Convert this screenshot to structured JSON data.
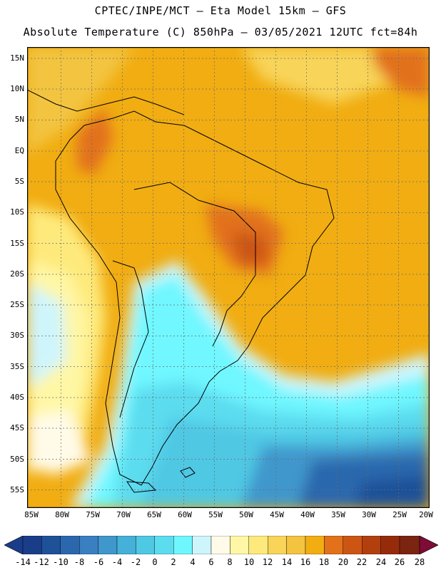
{
  "header": {
    "line1": "CPTEC/INPE/MCT –  Eta Model 15km – GFS",
    "line2": "Absolute Temperature (C) 850hPa – 03/05/2021 12UTC fct=84h"
  },
  "map": {
    "lat_labels": [
      "15N",
      "10N",
      "5N",
      "EQ",
      "5S",
      "10S",
      "15S",
      "20S",
      "25S",
      "30S",
      "35S",
      "40S",
      "45S",
      "50S",
      "55S"
    ],
    "lon_labels": [
      "85W",
      "80W",
      "75W",
      "70W",
      "65W",
      "60W",
      "55W",
      "50W",
      "45W",
      "40W",
      "35W",
      "30W",
      "25W",
      "20W"
    ]
  },
  "colorbar": {
    "labels": [
      "-14",
      "-12",
      "-10",
      "-8",
      "-6",
      "-4",
      "-2",
      "0",
      "2",
      "4",
      "6",
      "8",
      "10",
      "12",
      "14",
      "16",
      "18",
      "20",
      "22",
      "24",
      "26",
      "28"
    ],
    "colors": [
      "#1a3d8a",
      "#1f5199",
      "#2a67ad",
      "#3a7fc0",
      "#3f97cc",
      "#45b0d8",
      "#4fc8e4",
      "#5cdcef",
      "#6ff7ff",
      "#cff5fc",
      "#fffbe8",
      "#fff7a6",
      "#feea7c",
      "#f8d459",
      "#f3c43f",
      "#f1ad12",
      "#e2711a",
      "#cc5514",
      "#b23f0e",
      "#962b0c",
      "#7b2410",
      "#7e0c36"
    ]
  }
}
